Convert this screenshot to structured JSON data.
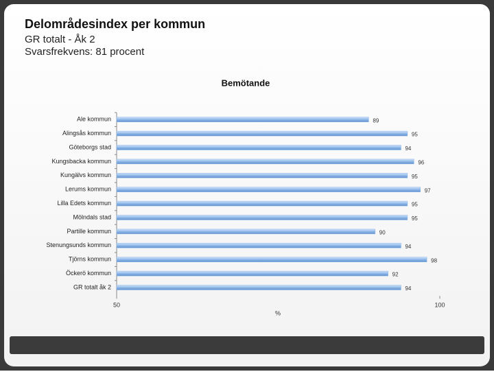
{
  "slide": {
    "title": "Delområdesindex per kommun",
    "subtitle": "GR totalt - Åk 2",
    "response_rate": "Svarsfrekvens: 81 procent"
  },
  "chart_data": {
    "type": "bar",
    "orientation": "horizontal",
    "title": "Bemötande",
    "categories": [
      "Ale kommun",
      "Alingsås kommun",
      "Göteborgs stad",
      "Kungsbacka kommun",
      "Kungälvs kommun",
      "Lerums kommun",
      "Lilla Edets kommun",
      "Mölndals stad",
      "Partille kommun",
      "Stenungsunds kommun",
      "Tjörns kommun",
      "Öckerö kommun",
      "GR totalt åk 2"
    ],
    "values": [
      89,
      95,
      94,
      96,
      95,
      97,
      95,
      95,
      90,
      94,
      98,
      92,
      94
    ],
    "color": "#8fb8e8",
    "xlim": [
      50,
      100
    ],
    "xticks": [
      50,
      100
    ],
    "xlabel": "%",
    "grid": false
  }
}
